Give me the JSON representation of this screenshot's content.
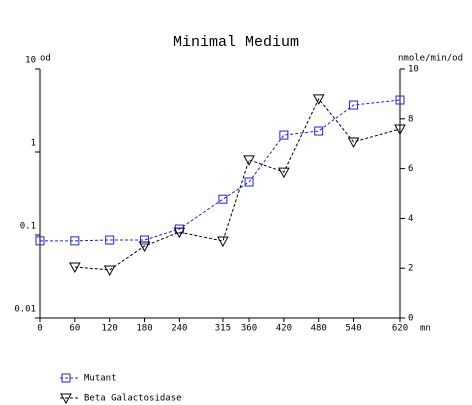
{
  "chart_data": {
    "type": "line",
    "title": "Minimal Medium",
    "y_label": "od",
    "y2_label": "nmole/min/od",
    "x_label": "mn",
    "x": [
      0,
      60,
      120,
      180,
      240,
      315,
      360,
      420,
      480,
      540,
      620
    ],
    "xlim": [
      0,
      620
    ],
    "xticks": [
      0,
      60,
      120,
      180,
      240,
      315,
      360,
      420,
      480,
      540,
      620
    ],
    "ylim": [
      0.01,
      10
    ],
    "yticks": [
      0.01,
      0.1,
      1,
      10
    ],
    "y_scale": "log",
    "y2lim": [
      0,
      10
    ],
    "y2ticks": [
      0,
      2,
      4,
      6,
      8,
      10
    ],
    "grid": false,
    "legend": "bottom-left",
    "series": [
      {
        "name": "Mutant",
        "color": "#2222cc",
        "marker": "square",
        "values": [
          0.085,
          0.085,
          0.087,
          0.087,
          0.118,
          0.27,
          0.435,
          1.6,
          1.79,
          3.68,
          4.23
        ]
      },
      {
        "name": "Beta Galactosidase",
        "color": "#000000",
        "marker": "triangle-down",
        "axis": "y2",
        "values": [
          null,
          2.05,
          1.93,
          2.89,
          3.45,
          3.09,
          6.35,
          5.86,
          8.8,
          7.07,
          7.59
        ]
      }
    ]
  }
}
